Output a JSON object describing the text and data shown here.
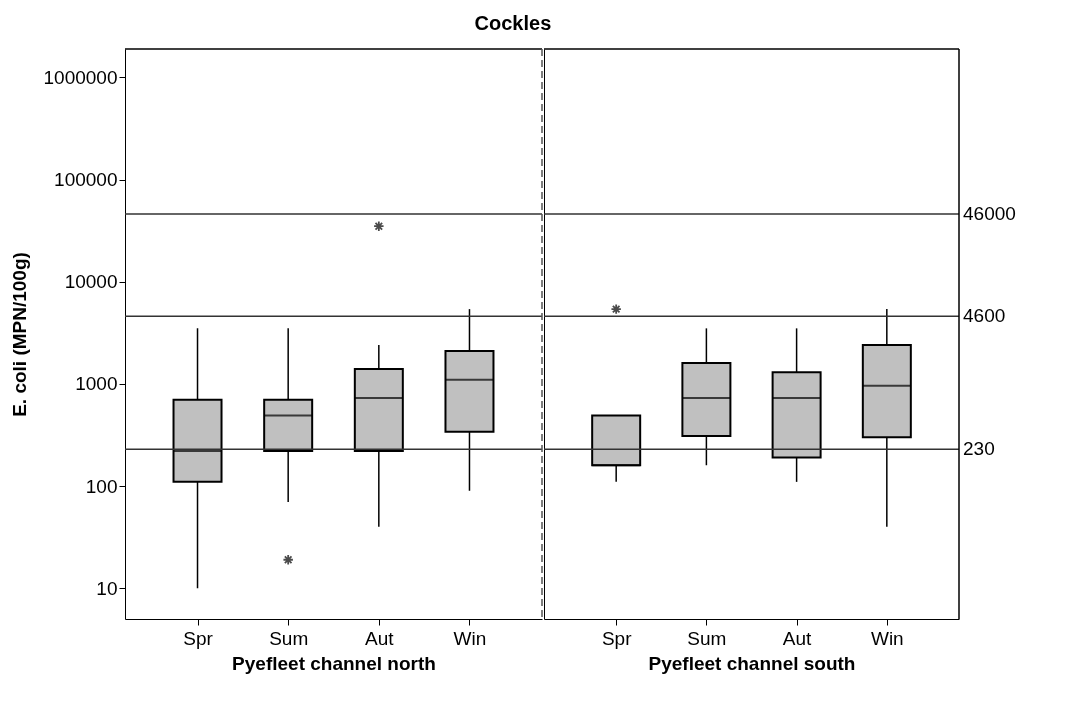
{
  "chart_data": [
    {
      "type": "box",
      "title": "Cockles",
      "ylabel": "E. coli (MPN/100g)",
      "xlabel": "Pyefleet channel north",
      "log": true,
      "ylim": [
        5,
        1900000
      ],
      "yticks": [
        10,
        100,
        1000,
        10000,
        100000,
        1000000
      ],
      "categories": [
        "Spr",
        "Sum",
        "Aut",
        "Win"
      ],
      "series": [
        {
          "color": "#c0c0c0",
          "boxes": [
            {
              "low": 10,
              "q1": 110,
              "median": 220,
              "q3": 700,
              "high": 3500
            },
            {
              "low": 70,
              "q1": 220,
              "median": 490,
              "q3": 700,
              "high": 3500,
              "outliers": [
                19
              ]
            },
            {
              "low": 40,
              "q1": 220,
              "median": 730,
              "q3": 1400,
              "high": 2400,
              "outliers": [
                35000
              ]
            },
            {
              "low": 90,
              "q1": 340,
              "median": 1100,
              "q3": 2100,
              "high": 5400
            }
          ]
        }
      ],
      "ref_lines": [
        {
          "axis": "y",
          "value": 46000
        },
        {
          "axis": "y",
          "value": 4600
        },
        {
          "axis": "y",
          "value": 230
        }
      ]
    },
    {
      "type": "box",
      "xlabel": "Pyefleet channel south",
      "log": true,
      "ylim": [
        5,
        1900000
      ],
      "tick_labels": "x",
      "categories": [
        "Spr",
        "Sum",
        "Aut",
        "Win"
      ],
      "series": [
        {
          "color": "#c0c0c0",
          "boxes": [
            {
              "low": 110,
              "q1": 160,
              "median": 160,
              "q3": 490,
              "high": 490,
              "outliers": [
                5400
              ]
            },
            {
              "low": 160,
              "q1": 310,
              "median": 730,
              "q3": 1600,
              "high": 3500
            },
            {
              "low": 110,
              "q1": 190,
              "median": 730,
              "q3": 1300,
              "high": 3500
            },
            {
              "low": 40,
              "q1": 300,
              "median": 960,
              "q3": 2400,
              "high": 5400
            }
          ]
        }
      ],
      "ref_lines": [
        {
          "axis": "y",
          "value": 46000,
          "label": "46000"
        },
        {
          "axis": "y",
          "value": 4600,
          "label": "4600"
        },
        {
          "axis": "y",
          "value": 230,
          "label": "230"
        }
      ]
    }
  ]
}
